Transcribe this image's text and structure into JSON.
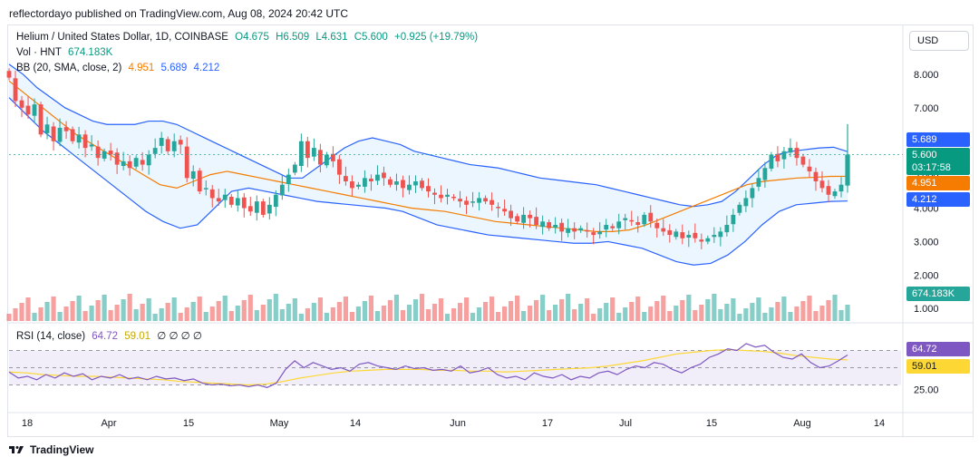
{
  "header": {
    "published_line": "reflectordayo published on TradingView.com, Aug 08, 2024 20:42 UTC"
  },
  "legend": {
    "symbol": "Helium / United States Dollar, 1D, COINBASE",
    "open": "O4.675",
    "high": "H6.509",
    "low": "L4.631",
    "close": "C5.600",
    "change": "+0.925 (+19.79%)",
    "vol_label": "Vol · HNT",
    "vol_value": "674.183K",
    "bb_label": "BB (20, SMA, close, 2)",
    "bb_basis": "4.951",
    "bb_upper": "5.689",
    "bb_lower": "4.212",
    "rsi_label": "RSI (14, close)",
    "rsi_value": "64.72",
    "rsi_ma": "59.01",
    "rsi_extra": "∅ ∅ ∅ ∅"
  },
  "currency_button": "USD",
  "price_tags": {
    "bb_upper": "5.689",
    "last_price": "5.600",
    "countdown": "03:17:58",
    "bb_basis": "4.951",
    "bb_lower": "4.212",
    "volume": "674.183K",
    "rsi": "64.72",
    "rsi_ma": "59.01"
  },
  "price_axis_labels": [
    "8.000",
    "7.000",
    "6.000",
    "5.000",
    "4.000",
    "3.000",
    "2.000",
    "1.000"
  ],
  "rsi_axis_labels": [
    "75.00",
    "25.00"
  ],
  "x_axis_labels": [
    "18",
    "Apr",
    "15",
    "May",
    "14",
    "Jun",
    "17",
    "Jul",
    "15",
    "Aug",
    "14"
  ],
  "colors": {
    "up": "#26a69a",
    "down": "#ef5350",
    "bb_band": "#2962ff",
    "bb_basis": "#f57c00",
    "bb_fill": "#e3f2fd",
    "rsi_line": "#7e57c2",
    "rsi_ma": "#fdd835",
    "rsi_bg": "#ede7f6"
  },
  "footer": {
    "brand": "TradingView"
  },
  "chart_data": {
    "type": "candlestick",
    "title": "Helium / United States Dollar, 1D, COINBASE",
    "x_range": [
      "2024-03-10",
      "2024-08-08"
    ],
    "y_price_range": [
      0.6,
      9.0
    ],
    "note_values": "approximate daily closes read from chart",
    "closes": [
      7.9,
      7.2,
      7.0,
      6.8,
      7.1,
      6.2,
      6.5,
      6.0,
      6.4,
      6.3,
      6.0,
      6.2,
      5.8,
      5.9,
      5.5,
      5.7,
      5.6,
      5.3,
      5.4,
      5.2,
      5.5,
      5.3,
      5.6,
      5.8,
      6.1,
      5.7,
      6.0,
      5.9,
      4.9,
      5.1,
      4.5,
      4.6,
      4.3,
      4.2,
      4.4,
      4.1,
      4.3,
      4.0,
      3.9,
      4.2,
      3.8,
      4.1,
      4.4,
      4.7,
      5.0,
      5.3,
      6.0,
      5.5,
      5.8,
      5.3,
      5.6,
      5.4,
      5.0,
      4.8,
      4.6,
      4.7,
      4.9,
      4.8,
      5.0,
      4.9,
      4.7,
      4.8,
      4.6,
      4.7,
      4.8,
      4.6,
      4.5,
      4.4,
      4.3,
      4.4,
      4.3,
      4.2,
      4.1,
      4.2,
      4.3,
      4.2,
      4.1,
      4.0,
      3.9,
      3.7,
      3.6,
      3.8,
      3.7,
      3.5,
      3.6,
      3.4,
      3.5,
      3.3,
      3.4,
      3.3,
      3.4,
      3.3,
      3.2,
      3.3,
      3.5,
      3.4,
      3.6,
      3.7,
      3.6,
      3.5,
      3.8,
      3.6,
      3.4,
      3.3,
      3.2,
      3.3,
      3.1,
      3.2,
      3.1,
      3.0,
      3.1,
      3.2,
      3.3,
      3.5,
      3.8,
      4.1,
      4.3,
      4.6,
      4.9,
      5.2,
      5.6,
      5.4,
      5.7,
      5.8,
      5.5,
      5.3,
      5.1,
      4.8,
      4.6,
      4.4,
      4.5,
      4.7,
      5.6
    ],
    "bb_upper": [
      8.3,
      8.0,
      7.6,
      7.3,
      7.0,
      6.8,
      6.6,
      6.5,
      6.5,
      6.5,
      6.6,
      6.6,
      6.5,
      6.3,
      6.1,
      5.9,
      5.7,
      5.5,
      5.3,
      5.1,
      4.9,
      4.9,
      5.2,
      5.5,
      5.8,
      6.0,
      6.1,
      6.0,
      5.9,
      5.7,
      5.6,
      5.5,
      5.4,
      5.3,
      5.25,
      5.2,
      5.1,
      5.0,
      4.9,
      4.85,
      4.8,
      4.75,
      4.7,
      4.6,
      4.5,
      4.4,
      4.3,
      4.2,
      4.1,
      4.05,
      4.1,
      4.2,
      4.5,
      4.9,
      5.3,
      5.6,
      5.7,
      5.75,
      5.8,
      5.82,
      5.689
    ],
    "bb_basis": [
      7.8,
      7.4,
      7.0,
      6.6,
      6.2,
      5.9,
      5.6,
      5.3,
      5.0,
      4.7,
      4.6,
      4.8,
      5.0,
      5.1,
      5.0,
      4.9,
      4.8,
      4.7,
      4.6,
      4.5,
      4.4,
      4.3,
      4.2,
      4.1,
      4.0,
      3.95,
      3.9,
      3.8,
      3.7,
      3.6,
      3.55,
      3.5,
      3.45,
      3.4,
      3.35,
      3.3,
      3.3,
      3.35,
      3.5,
      3.7,
      3.9,
      4.1,
      4.3,
      4.5,
      4.7,
      4.8,
      4.85,
      4.9,
      4.92,
      4.95,
      4.951
    ],
    "bb_lower": [
      7.3,
      6.8,
      6.3,
      5.9,
      5.5,
      5.1,
      4.7,
      4.3,
      3.9,
      3.6,
      3.4,
      3.5,
      4.0,
      4.5,
      4.6,
      4.5,
      4.4,
      4.3,
      4.2,
      4.15,
      4.1,
      4.05,
      4.0,
      3.9,
      3.7,
      3.5,
      3.4,
      3.3,
      3.2,
      3.15,
      3.1,
      3.05,
      3.0,
      2.95,
      2.95,
      3.0,
      2.9,
      2.8,
      2.6,
      2.4,
      2.3,
      2.35,
      2.6,
      3.0,
      3.5,
      3.9,
      4.1,
      4.15,
      4.2,
      4.212
    ],
    "volume_last": "674.183K",
    "rsi_values": [
      45,
      38,
      40,
      36,
      42,
      38,
      44,
      40,
      43,
      36,
      40,
      38,
      42,
      37,
      39,
      36,
      40,
      37,
      38,
      35,
      37,
      32,
      30,
      31,
      29,
      30,
      28,
      30,
      27,
      32,
      48,
      58,
      50,
      56,
      52,
      48,
      50,
      46,
      54,
      56,
      52,
      50,
      48,
      52,
      49,
      50,
      47,
      48,
      46,
      52,
      44,
      46,
      50,
      42,
      38,
      40,
      36,
      44,
      40,
      38,
      42,
      36,
      40,
      38,
      44,
      46,
      42,
      48,
      52,
      50,
      56,
      54,
      48,
      44,
      50,
      54,
      62,
      66,
      72,
      70,
      78,
      74,
      76,
      68,
      62,
      60,
      66,
      56,
      50,
      52,
      58,
      64.72
    ],
    "rsi_ma_values": [
      45,
      44,
      42,
      41,
      40,
      40,
      39,
      38,
      37,
      36,
      34,
      33,
      32,
      31,
      30,
      31,
      34,
      38,
      41,
      44,
      46,
      47,
      48,
      48,
      48,
      47,
      47,
      46,
      46,
      45,
      46,
      47,
      48,
      49,
      50,
      52,
      55,
      58,
      62,
      66,
      68,
      70,
      71,
      70,
      69,
      67,
      64,
      62,
      60,
      59.01
    ],
    "rsi_range": [
      0,
      100
    ],
    "rsi_levels": [
      70,
      50,
      30
    ]
  }
}
